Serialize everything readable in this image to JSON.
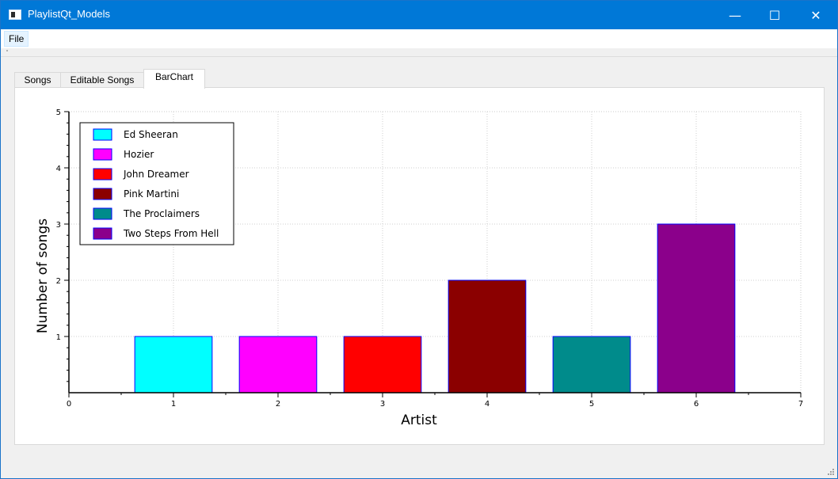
{
  "window": {
    "title": "PlaylistQt_Models",
    "minimize": "—",
    "maximize": "☐",
    "close": "✕"
  },
  "menu": {
    "file": "File"
  },
  "tabs": [
    "Songs",
    "Editable Songs",
    "BarChart"
  ],
  "active_tab": "BarChart",
  "chart_data": {
    "type": "bar",
    "xlabel": "Artist",
    "ylabel": "Number of songs",
    "xlim": [
      0,
      7
    ],
    "ylim": [
      0,
      5
    ],
    "xticks": [
      0,
      1,
      2,
      3,
      4,
      5,
      6,
      7
    ],
    "yticks": [
      1,
      2,
      3,
      4,
      5
    ],
    "grid": true,
    "legend_position": "top-left",
    "series": [
      {
        "name": "Ed Sheeran",
        "x": 1,
        "value": 1,
        "color": "#00ffff"
      },
      {
        "name": "Hozier",
        "x": 2,
        "value": 1,
        "color": "#ff00ff"
      },
      {
        "name": "John Dreamer",
        "x": 3,
        "value": 1,
        "color": "#ff0000"
      },
      {
        "name": "Pink Martini",
        "x": 4,
        "value": 2,
        "color": "#8b0000"
      },
      {
        "name": "The Proclaimers",
        "x": 5,
        "value": 1,
        "color": "#008b8b"
      },
      {
        "name": "Two Steps From Hell",
        "x": 6,
        "value": 3,
        "color": "#8b008b"
      }
    ],
    "bar_edge_color": "#0000ff"
  }
}
